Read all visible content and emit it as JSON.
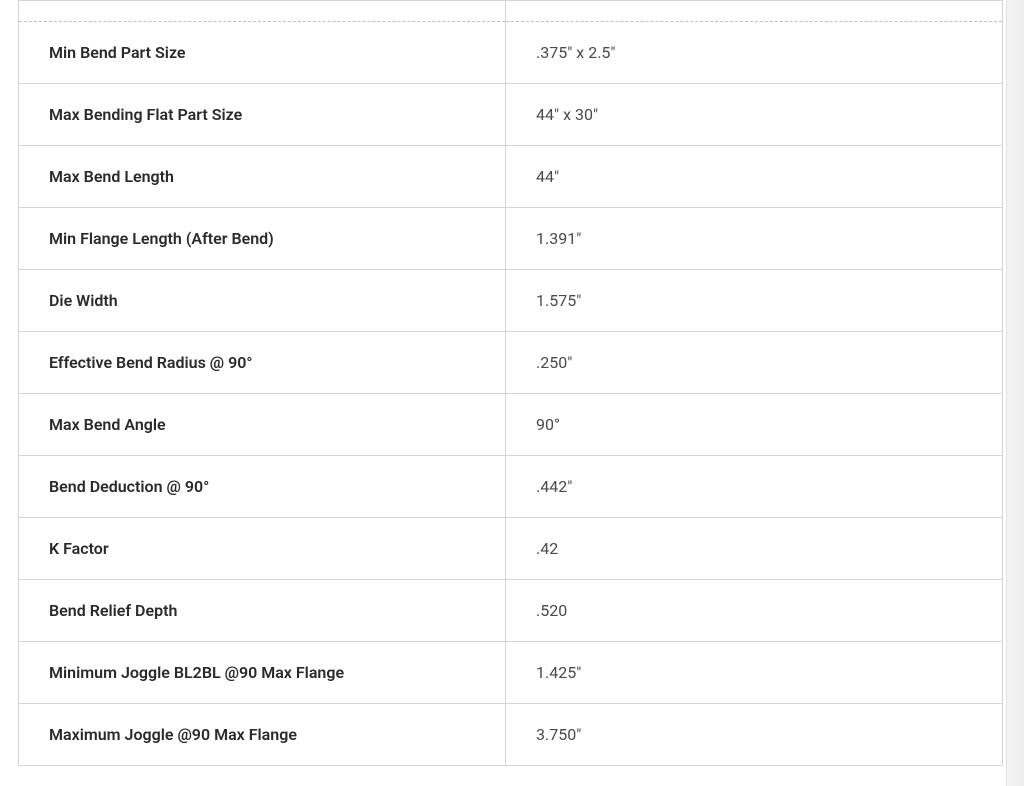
{
  "table": {
    "border_color": "#d4d4d4",
    "dashed_border_color": "#c0c0c0",
    "label_text_color": "#2a2a2a",
    "value_text_color": "#4a4a4a",
    "font_size": 16,
    "label_font_weight": 600,
    "value_font_weight": 400,
    "cell_padding_vertical": 21,
    "cell_padding_horizontal": 30,
    "label_column_width": 487,
    "background_color": "#ffffff",
    "rows": [
      {
        "label": "Min Bend Part Size",
        "value": ".375\" x 2.5\""
      },
      {
        "label": "Max Bending Flat Part Size",
        "value": "44\" x 30\""
      },
      {
        "label": "Max Bend Length",
        "value": "44\""
      },
      {
        "label": "Min Flange Length (After Bend)",
        "value": "1.391\""
      },
      {
        "label": "Die Width",
        "value": "1.575\""
      },
      {
        "label": "Effective Bend Radius @ 90°",
        "value": ".250\""
      },
      {
        "label": "Max Bend Angle",
        "value": "90°"
      },
      {
        "label": "Bend Deduction @ 90°",
        "value": ".442\""
      },
      {
        "label": "K Factor",
        "value": ".42"
      },
      {
        "label": "Bend Relief Depth",
        "value": ".520"
      },
      {
        "label": "Minimum Joggle BL2BL @90 Max Flange",
        "value": "1.425\""
      },
      {
        "label": "Maximum Joggle @90 Max Flange",
        "value": "3.750\""
      }
    ]
  }
}
